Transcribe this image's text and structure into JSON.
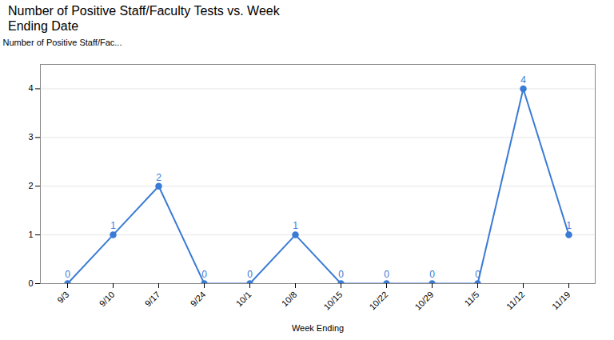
{
  "chart_data": {
    "type": "line",
    "title": "Number of Positive Staff/Faculty Tests vs. Week\nEnding Date",
    "xlabel": "Week Ending",
    "ylabel": "Number of Positive Staff/Fac...",
    "categories": [
      "9/3",
      "9/10",
      "9/17",
      "9/24",
      "10/1",
      "10/8",
      "10/15",
      "10/22",
      "10/29",
      "11/5",
      "11/12",
      "11/19"
    ],
    "values": [
      0,
      1,
      2,
      0,
      0,
      1,
      0,
      0,
      0,
      0,
      4,
      1
    ],
    "color": "#3a7bd5",
    "marker": "circle",
    "ylim": [
      0,
      4.5
    ],
    "yticks": [
      0,
      1,
      2,
      3,
      4
    ],
    "grid": true,
    "data_labels": true
  }
}
